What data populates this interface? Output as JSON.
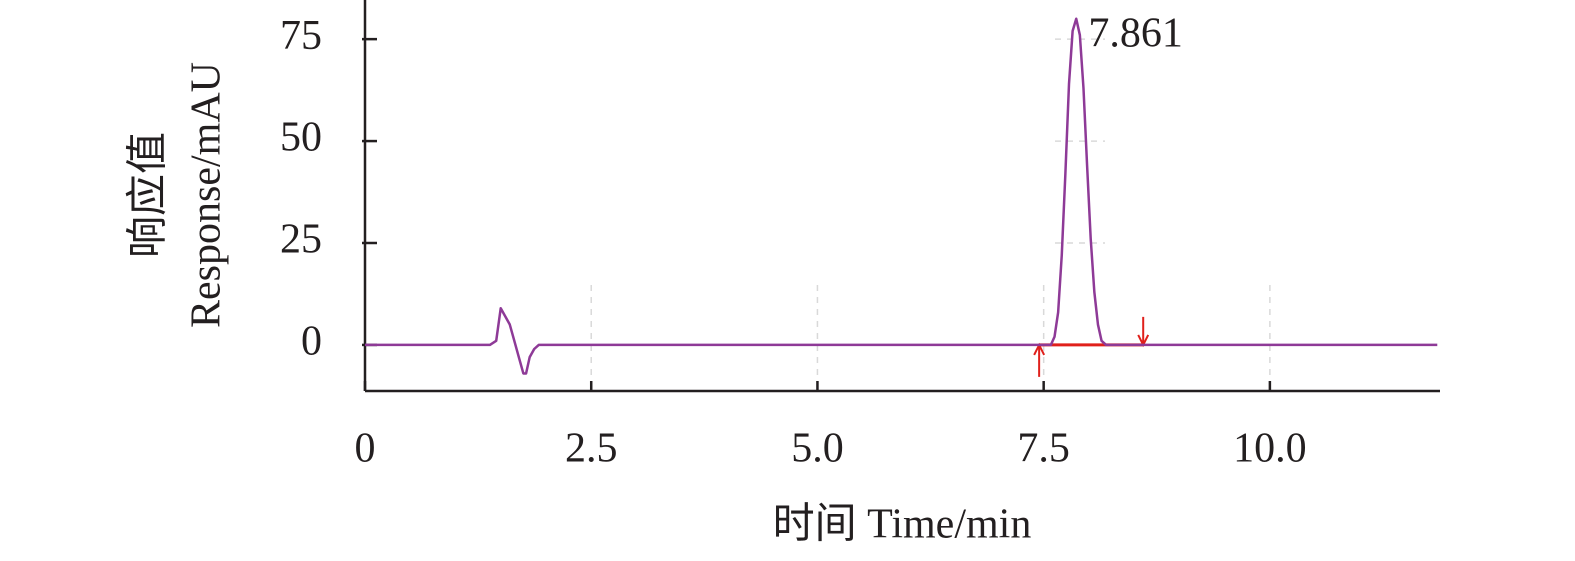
{
  "chart_data": {
    "type": "line",
    "x_label": "时间 Time/min",
    "y_label": [
      "响应值",
      "Response/mAU"
    ],
    "xlim": [
      0,
      11.88
    ],
    "ylim": [
      -11.3,
      84.6
    ],
    "xticks": [
      0,
      2.5,
      {
        "value": 5,
        "label": "5.0"
      },
      7.5,
      {
        "value": 10,
        "label": "10.0"
      }
    ],
    "yticks": [
      0,
      25,
      50,
      75
    ],
    "grid": true,
    "series": [
      {
        "color": "#8e3a97",
        "x": [
          0,
          1.38,
          1.45,
          1.5,
          1.55,
          1.6,
          1.65,
          1.7,
          1.75,
          1.78,
          1.82,
          1.87,
          1.92,
          7.58,
          7.62,
          7.66,
          7.7,
          7.74,
          7.78,
          7.82,
          7.86,
          7.9,
          7.94,
          7.98,
          8.02,
          8.06,
          8.1,
          8.14,
          8.19,
          11.85
        ],
        "values": [
          0,
          0,
          1,
          9,
          7,
          5,
          1,
          -3,
          -7,
          -7,
          -3,
          -1,
          0,
          0,
          2,
          8,
          22,
          42,
          64,
          77,
          80,
          76,
          63,
          44,
          26,
          13,
          5,
          1,
          0,
          0
        ]
      }
    ],
    "annotations": [
      {
        "text": "7.861",
        "x": 7.861,
        "y": 80
      }
    ],
    "integration": {
      "color": "#e0201b",
      "x": [
        7.45,
        8.6
      ]
    }
  }
}
